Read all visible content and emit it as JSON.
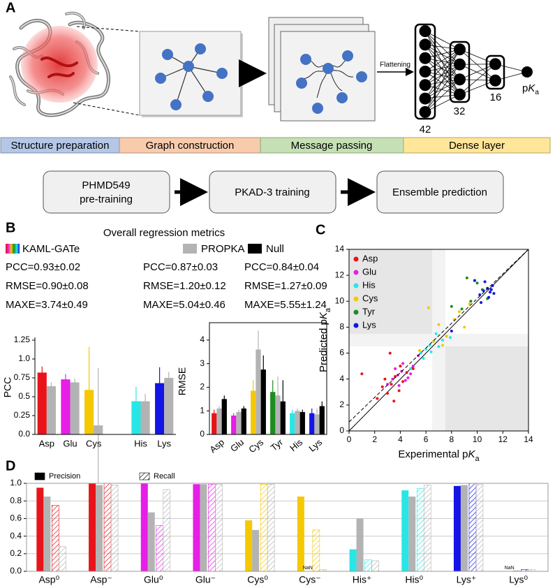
{
  "panel_labels": [
    "A",
    "B",
    "C",
    "D"
  ],
  "pipeline": {
    "flattening": "Flattening",
    "layers": [
      42,
      32,
      16
    ],
    "output": [
      "p",
      "K",
      "a"
    ],
    "stages": [
      "Structure preparation",
      "Graph construction",
      "Message passing",
      "Dense layer"
    ],
    "workflow": [
      [
        "PHMD549",
        "pre-training"
      ],
      [
        "PKAD-3 training"
      ],
      [
        "Ensemble prediction"
      ]
    ]
  },
  "metrics": {
    "title": "Overall regression metrics",
    "methods": [
      {
        "name": "KAML-GATe",
        "rows": [
          "PCC=0.93±0.02",
          "RMSE=0.90±0.08",
          "MAXE=3.74±0.49"
        ]
      },
      {
        "name": "PROPKA",
        "color": "#b3b3b3",
        "rows": [
          "PCC=0.87±0.03",
          "RMSE=1.20±0.12",
          "MAXE=5.04±0.46"
        ]
      },
      {
        "name": "Null",
        "color": "#000000",
        "rows": [
          "PCC=0.84±0.04",
          "RMSE=1.27±0.09",
          "MAXE=5.55±1.24"
        ]
      }
    ]
  },
  "chart_data": [
    {
      "type": "bar",
      "ylabel": "PCC",
      "categories": [
        "Asp",
        "Glu",
        "Cys",
        null,
        "His",
        "Lys"
      ],
      "ylim": [
        0,
        1.25
      ],
      "yticks": [
        {
          "value": 0,
          "label": "0.0"
        },
        0.25,
        0.5,
        0.75,
        {
          "value": 1,
          "label": "1.0"
        },
        1.25
      ],
      "series": [
        {
          "colors": [
            "#e8141a",
            "#e61ee6",
            "#f5c800",
            null,
            "#28e6e6",
            "#1414e6"
          ],
          "values": [
            0.82,
            0.73,
            0.59,
            null,
            0.44,
            0.68
          ],
          "errors": [
            0.08,
            0.07,
            0.57,
            null,
            0.19,
            0.21
          ]
        },
        {
          "color": "#b3b3b3",
          "values": [
            0.64,
            0.69,
            0.12,
            null,
            0.44,
            0.75
          ],
          "errors": [
            0.05,
            0.05,
            0.76,
            null,
            0.1,
            0.08
          ]
        }
      ]
    },
    {
      "type": "bar",
      "ylabel": "RMSE",
      "categories": [
        "Asp",
        "Glu",
        "Cys",
        "Tyr",
        "His",
        "Lys"
      ],
      "ylim": [
        0,
        4.5
      ],
      "yticks": [
        0,
        1,
        2,
        3,
        4
      ],
      "series": [
        {
          "colors": [
            "#e8141a",
            "#e61ee6",
            "#f5c800",
            "#1e8c1e",
            "#28e6e6",
            "#1414e6"
          ],
          "values": [
            0.9,
            0.8,
            1.85,
            1.8,
            0.9,
            0.9
          ],
          "errors": [
            0.15,
            0.1,
            0.45,
            0.5,
            0.15,
            0.2
          ]
        },
        {
          "color": "#b3b3b3",
          "values": [
            1.1,
            0.95,
            3.6,
            1.65,
            1.0,
            0.85
          ],
          "errors": [
            0.1,
            0.1,
            0.8,
            0.8,
            0.1,
            0.25
          ]
        },
        {
          "color": "#000000",
          "values": [
            1.5,
            1.1,
            2.75,
            1.4,
            0.95,
            1.2
          ],
          "errors": [
            0.15,
            0.1,
            0.6,
            0.9,
            0.1,
            0.2
          ]
        }
      ]
    },
    {
      "type": "scatter",
      "xlabel": [
        "Experimental p",
        "K",
        "a"
      ],
      "ylabel": [
        "Predicted p",
        "K",
        "a"
      ],
      "xlim": [
        0,
        14
      ],
      "ylim": [
        0,
        14
      ],
      "xticks": [
        0,
        2,
        4,
        6,
        8,
        10,
        12,
        14
      ],
      "yticks": [
        0,
        2,
        4,
        6,
        8,
        10,
        12,
        14
      ],
      "legend": "upper left",
      "series": [
        {
          "name": "Asp",
          "color": "#e8141a",
          "x": [
            2.2,
            2.6,
            3.0,
            3.3,
            3.6,
            3.9,
            4.2,
            4.5,
            2.8,
            3.5,
            4.0,
            1.0,
            5.0,
            3.2
          ],
          "y": [
            2.5,
            3.4,
            2.9,
            3.6,
            4.2,
            3.1,
            3.8,
            4.5,
            4.0,
            2.3,
            5.0,
            4.4,
            4.8,
            6.0
          ]
        },
        {
          "name": "Glu",
          "color": "#e61ee6",
          "x": [
            3.0,
            3.4,
            3.8,
            4.1,
            4.4,
            4.8,
            5.0,
            3.6,
            4.2,
            4.6,
            5.4,
            3.9
          ],
          "y": [
            3.6,
            4.0,
            4.3,
            4.6,
            3.9,
            4.4,
            5.0,
            4.8,
            5.2,
            4.1,
            5.8,
            3.5
          ]
        },
        {
          "name": "His",
          "color": "#28e6e6",
          "x": [
            5.6,
            6.0,
            6.3,
            6.6,
            7.0,
            7.3,
            7.6,
            6.8,
            5.8,
            6.4,
            7.9,
            4.8
          ],
          "y": [
            6.0,
            6.3,
            6.6,
            6.9,
            6.5,
            7.0,
            7.3,
            7.5,
            5.6,
            6.1,
            7.2,
            4.8
          ]
        },
        {
          "name": "Cys",
          "color": "#f5c800",
          "x": [
            5.5,
            6.2,
            7.0,
            7.6,
            8.2,
            9.0,
            8.6,
            7.3,
            6.6,
            9.4
          ],
          "y": [
            6.2,
            9.5,
            8.2,
            7.3,
            8.6,
            8.0,
            9.2,
            6.6,
            6.9,
            9.8
          ]
        },
        {
          "name": "Tyr",
          "color": "#1e8c1e",
          "x": [
            8.8,
            9.5,
            10.0,
            10.4,
            9.2,
            10.8,
            8.0,
            9.8
          ],
          "y": [
            9.4,
            10.0,
            11.4,
            10.9,
            11.8,
            10.2,
            9.6,
            11.6
          ]
        },
        {
          "name": "Lys",
          "color": "#1414e6",
          "x": [
            10.2,
            10.5,
            10.8,
            11.0,
            11.2,
            10.6,
            10.9,
            11.1,
            9.8,
            8.0,
            10.3,
            11.3
          ],
          "y": [
            10.5,
            10.8,
            11.0,
            10.7,
            11.2,
            11.5,
            10.3,
            10.9,
            11.6,
            7.7,
            9.9,
            10.6
          ]
        }
      ]
    },
    {
      "type": "grouped_bar",
      "categories": [
        "Asp⁰",
        "Asp⁻",
        "Glu⁰",
        "Glu⁻",
        "Cys⁰",
        "Cys⁻",
        "His⁺",
        "His⁰",
        "Lys⁺",
        "Lys⁰"
      ],
      "category_colors": [
        "#e8141a",
        "#e8141a",
        "#e61ee6",
        "#e61ee6",
        "#f5c800",
        "#f5c800",
        "#28e6e6",
        "#28e6e6",
        "#1414e6",
        "#1414e6"
      ],
      "reference_color": "#b3b3b3",
      "ylim": [
        0,
        1
      ],
      "yticks": [
        {
          "value": 0,
          "label": "0.0"
        },
        0.2,
        0.4,
        0.6,
        0.8,
        {
          "value": 1,
          "label": "1.0"
        }
      ],
      "grid": true,
      "series": [
        {
          "name": "Precision",
          "hatched": false,
          "values": [
            0.95,
            1.0,
            1.0,
            0.99,
            0.58,
            0.85,
            0.25,
            0.92,
            0.97,
            null
          ],
          "value_labels": [
            null,
            null,
            null,
            null,
            null,
            null,
            null,
            null,
            null,
            "NaN"
          ],
          "reference_values": [
            0.85,
            0.98,
            0.67,
            0.99,
            0.47,
            null,
            0.6,
            0.85,
            0.98,
            0.01
          ],
          "reference_value_labels": [
            null,
            null,
            null,
            null,
            null,
            "NaN",
            null,
            null,
            null,
            null
          ]
        },
        {
          "name": "Recall",
          "hatched": true,
          "values": [
            0.75,
            1.0,
            0.52,
            0.99,
            0.99,
            0.47,
            0.13,
            0.94,
            1.0,
            0.02
          ],
          "reference_values": [
            0.28,
            0.98,
            0.93,
            0.99,
            0.99,
            0.02,
            0.12,
            0.98,
            0.99,
            0.02
          ]
        }
      ]
    }
  ]
}
